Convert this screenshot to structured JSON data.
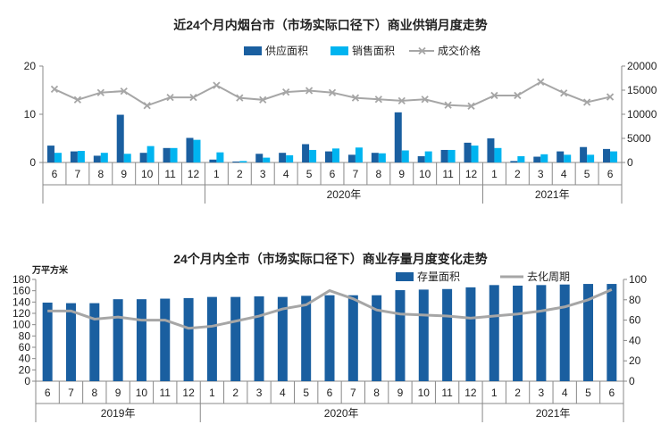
{
  "colors": {
    "supply": "#1a5fa0",
    "sales": "#00b4f0",
    "price": "#a6a6a6",
    "stock": "#1a5fa0",
    "cycle": "#a6a6a6"
  },
  "chart_data": [
    {
      "type": "bar",
      "title": "近24个月内烟台市（市场实际口径下）商业供销月度走势",
      "months": [
        "6",
        "7",
        "8",
        "9",
        "10",
        "11",
        "12",
        "1",
        "2",
        "3",
        "4",
        "5",
        "6",
        "7",
        "8",
        "9",
        "10",
        "11",
        "12",
        "1",
        "2",
        "3",
        "4",
        "5",
        "6"
      ],
      "years": [
        {
          "label": "",
          "start": 0,
          "end": 6
        },
        {
          "label": "2020年",
          "start": 7,
          "end": 18
        },
        {
          "label": "2021年",
          "start": 19,
          "end": 24
        }
      ],
      "y_left": {
        "min": 0,
        "max": 20,
        "ticks": [
          0,
          10,
          20
        ]
      },
      "y_right": {
        "min": 0,
        "max": 20000,
        "ticks": [
          0,
          5000,
          10000,
          15000,
          20000
        ]
      },
      "series": [
        {
          "name": "供应面积",
          "kind": "bar",
          "axis": "left",
          "values": [
            3.5,
            2.3,
            1.4,
            9.9,
            2.0,
            3.0,
            5.1,
            0.6,
            0.2,
            1.8,
            2.0,
            3.8,
            2.3,
            1.6,
            2.0,
            10.4,
            1.3,
            2.6,
            4.1,
            5.0,
            0.3,
            1.2,
            2.3,
            3.2,
            2.8
          ]
        },
        {
          "name": "销售面积",
          "kind": "bar",
          "axis": "left",
          "values": [
            2.0,
            2.4,
            2.0,
            1.8,
            3.4,
            3.0,
            4.7,
            2.1,
            0.3,
            1.0,
            1.5,
            2.6,
            2.9,
            3.1,
            1.9,
            2.5,
            2.3,
            2.6,
            3.5,
            3.0,
            1.3,
            1.7,
            1.6,
            1.6,
            2.3
          ]
        },
        {
          "name": "成交价格",
          "kind": "line",
          "axis": "right",
          "values": [
            15200,
            13000,
            14500,
            14800,
            11800,
            13500,
            13500,
            16000,
            13400,
            13000,
            14600,
            14900,
            14500,
            13400,
            13100,
            12800,
            13100,
            11900,
            11700,
            13900,
            13900,
            16700,
            14400,
            12500,
            13600
          ]
        }
      ]
    },
    {
      "type": "bar",
      "title": "24个月内全市（市场实际口径下）商业存量月度变化走势",
      "unit": "万平方米",
      "months": [
        "6",
        "7",
        "8",
        "9",
        "10",
        "11",
        "12",
        "1",
        "2",
        "3",
        "4",
        "5",
        "6",
        "7",
        "8",
        "9",
        "10",
        "11",
        "12",
        "1",
        "2",
        "3",
        "4",
        "5",
        "6"
      ],
      "years": [
        {
          "label": "2019年",
          "start": 0,
          "end": 6
        },
        {
          "label": "2020年",
          "start": 7,
          "end": 18
        },
        {
          "label": "2021年",
          "start": 19,
          "end": 24
        }
      ],
      "y_left": {
        "min": 0,
        "max": 180,
        "ticks": [
          0,
          20,
          40,
          60,
          80,
          100,
          120,
          140,
          160,
          180
        ]
      },
      "y_right": {
        "min": 0,
        "max": 100,
        "ticks": [
          0,
          20,
          40,
          60,
          80,
          100
        ]
      },
      "series": [
        {
          "name": "存量面积",
          "kind": "bar",
          "axis": "left",
          "values": [
            139,
            138,
            138,
            145,
            145,
            146,
            147,
            149,
            149,
            150,
            149,
            151,
            152,
            152,
            152,
            161,
            162,
            163,
            166,
            170,
            169,
            170,
            171,
            172,
            172
          ]
        },
        {
          "name": "去化周期",
          "kind": "line",
          "axis": "right",
          "values": [
            69,
            69,
            61,
            63,
            60,
            60,
            52,
            54,
            59,
            64,
            71,
            75,
            89,
            81,
            70,
            66,
            65,
            64,
            62,
            64,
            66,
            69,
            73,
            80,
            90
          ]
        }
      ]
    }
  ]
}
